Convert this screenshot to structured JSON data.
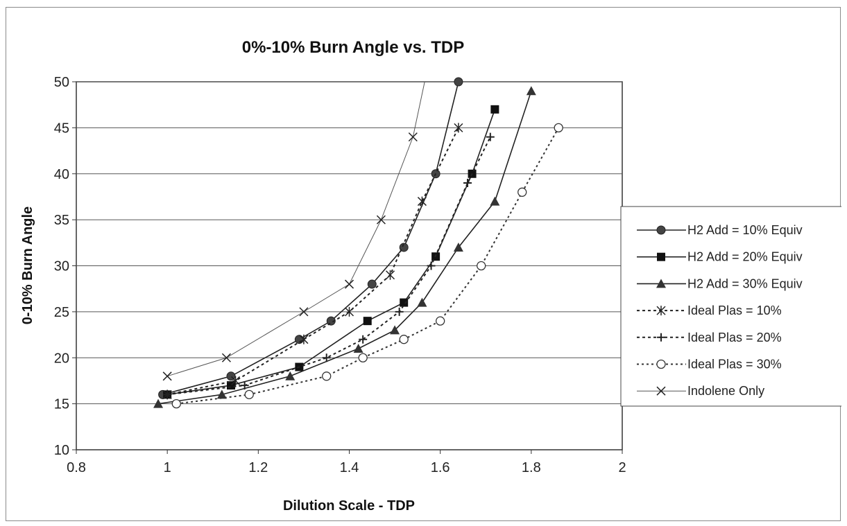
{
  "chart_data": {
    "type": "line",
    "title": "0%-10% Burn Angle vs. TDP",
    "xlabel": "Dilution Scale - TDP",
    "ylabel": "0-10% Burn Angle",
    "xlim": [
      0.8,
      2
    ],
    "ylim": [
      10,
      50
    ],
    "xticks": [
      "0.8",
      "1",
      "1.2",
      "1.4",
      "1.6",
      "1.8",
      "2"
    ],
    "yticks": [
      "10",
      "15",
      "20",
      "25",
      "30",
      "35",
      "40",
      "45",
      "50"
    ],
    "grid": "horizontal",
    "legend_position": "right",
    "series": [
      {
        "name": "H2 Add = 10% Equiv",
        "marker": "circle",
        "line": "solid",
        "x": [
          0.99,
          1.14,
          1.29,
          1.36,
          1.45,
          1.52,
          1.59,
          1.64
        ],
        "y": [
          16,
          18,
          22,
          24,
          28,
          32,
          40,
          50
        ]
      },
      {
        "name": "H2 Add = 20% Equiv",
        "marker": "square",
        "line": "solid",
        "x": [
          1.0,
          1.14,
          1.29,
          1.44,
          1.52,
          1.59,
          1.67,
          1.72
        ],
        "y": [
          16,
          17,
          19,
          24,
          26,
          31,
          40,
          47
        ]
      },
      {
        "name": "H2 Add = 30% Equiv",
        "marker": "triangle",
        "line": "solid",
        "x": [
          0.98,
          1.12,
          1.27,
          1.42,
          1.5,
          1.56,
          1.64,
          1.72,
          1.8
        ],
        "y": [
          15,
          16,
          18,
          21,
          23,
          26,
          32,
          37,
          49
        ]
      },
      {
        "name": "Ideal Plas = 10%",
        "marker": "asterisk",
        "line": "dashed",
        "x": [
          1.0,
          1.15,
          1.3,
          1.4,
          1.49,
          1.56,
          1.64
        ],
        "y": [
          16,
          17.5,
          22,
          25,
          29,
          37,
          45
        ]
      },
      {
        "name": "Ideal Plas = 20%",
        "marker": "plus",
        "line": "dashed",
        "x": [
          1.0,
          1.17,
          1.35,
          1.43,
          1.51,
          1.58,
          1.66,
          1.71
        ],
        "y": [
          16,
          17,
          20,
          22,
          25,
          30,
          39,
          44
        ]
      },
      {
        "name": "Ideal Plas = 30%",
        "marker": "open-circle",
        "line": "dotted",
        "x": [
          1.02,
          1.18,
          1.35,
          1.43,
          1.52,
          1.6,
          1.69,
          1.78,
          1.86
        ],
        "y": [
          15,
          16,
          18,
          20,
          22,
          24,
          30,
          38,
          45
        ]
      },
      {
        "name": "Indolene Only",
        "marker": "x",
        "line": "solid-thin",
        "x": [
          1.0,
          1.13,
          1.3,
          1.4,
          1.47,
          1.54,
          1.57
        ],
        "y": [
          18,
          20,
          25,
          28,
          35,
          44,
          51
        ]
      }
    ]
  }
}
